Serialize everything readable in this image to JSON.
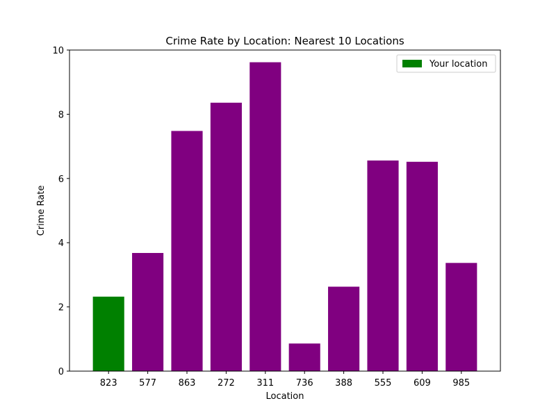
{
  "chart_data": {
    "type": "bar",
    "title": "Crime Rate by Location: Nearest 10 Locations",
    "xlabel": "Location",
    "ylabel": "Crime Rate",
    "categories": [
      "823",
      "577",
      "863",
      "272",
      "311",
      "736",
      "388",
      "555",
      "609",
      "985"
    ],
    "values": [
      2.32,
      3.68,
      7.48,
      8.36,
      9.62,
      0.86,
      2.63,
      6.56,
      6.52,
      3.37
    ],
    "ylim": [
      0,
      10
    ],
    "yticks": [
      "0",
      "2",
      "4",
      "6",
      "8",
      "10"
    ],
    "colors": {
      "highlight": "#008000",
      "default": "#800080"
    },
    "highlight_index": 0,
    "legend": {
      "label": "Your location",
      "position": "top-right"
    },
    "grid": false
  }
}
